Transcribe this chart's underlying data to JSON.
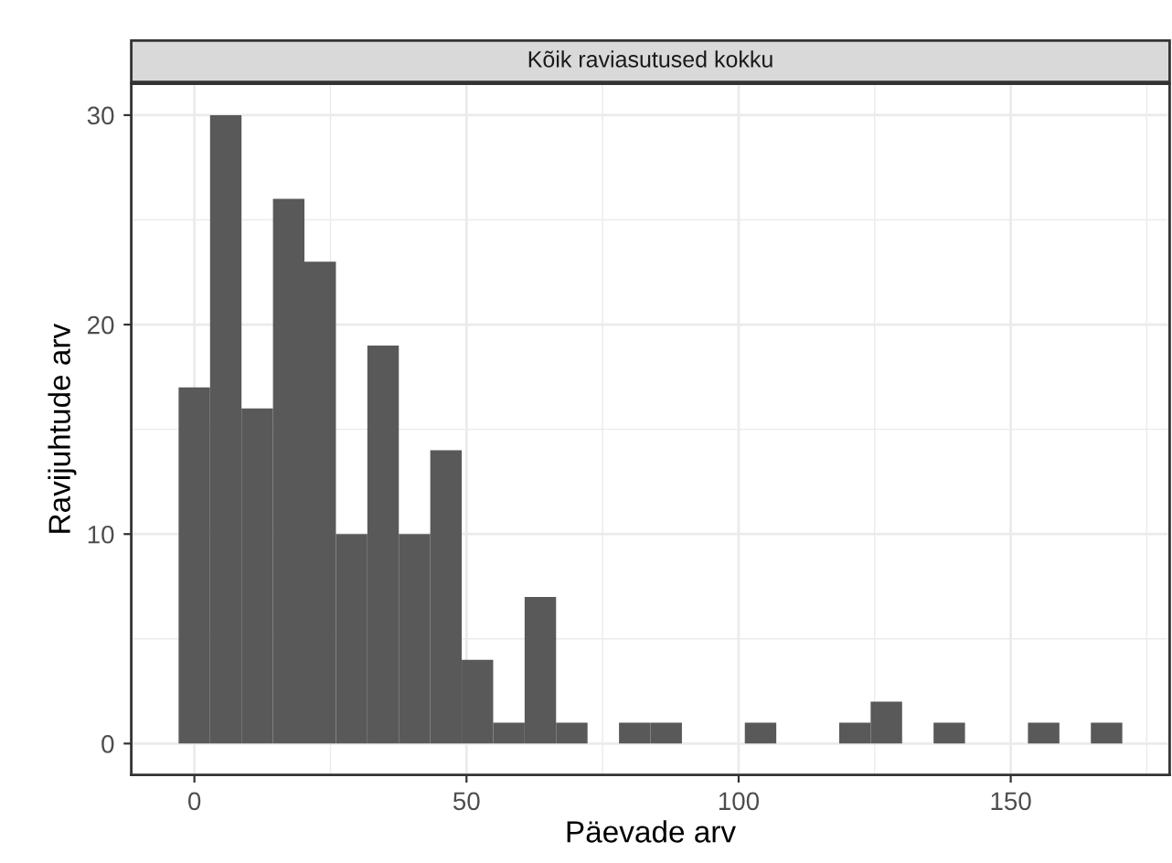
{
  "chart_data": {
    "type": "histogram",
    "title": "Kõik raviasutused kokku",
    "xlabel": "Päevade arv",
    "ylabel": "Ravijuhtude arv",
    "bins": [
      -2.9,
      2.88,
      8.66,
      14.44,
      20.22,
      26.0,
      31.78,
      37.56,
      43.34,
      49.12,
      54.9,
      60.68,
      66.46,
      72.24,
      78.02,
      83.8,
      89.58,
      95.36,
      101.14,
      106.92,
      112.7,
      118.48,
      124.26,
      130.04,
      135.82,
      141.6,
      147.38,
      153.16,
      158.94,
      164.72,
      170.5
    ],
    "values": [
      17,
      30,
      16,
      26,
      23,
      10,
      19,
      10,
      14,
      4,
      1,
      7,
      1,
      0,
      1,
      1,
      0,
      0,
      1,
      0,
      0,
      1,
      2,
      0,
      1,
      0,
      0,
      1,
      0,
      1
    ],
    "color": "#595959",
    "xlim": [
      -11.6,
      179.2
    ],
    "xticks": [
      0,
      50,
      100,
      150
    ],
    "ylim": [
      -1.5,
      31.5
    ],
    "yticks": [
      0,
      10,
      20,
      30
    ],
    "grid": true,
    "legend": false
  }
}
